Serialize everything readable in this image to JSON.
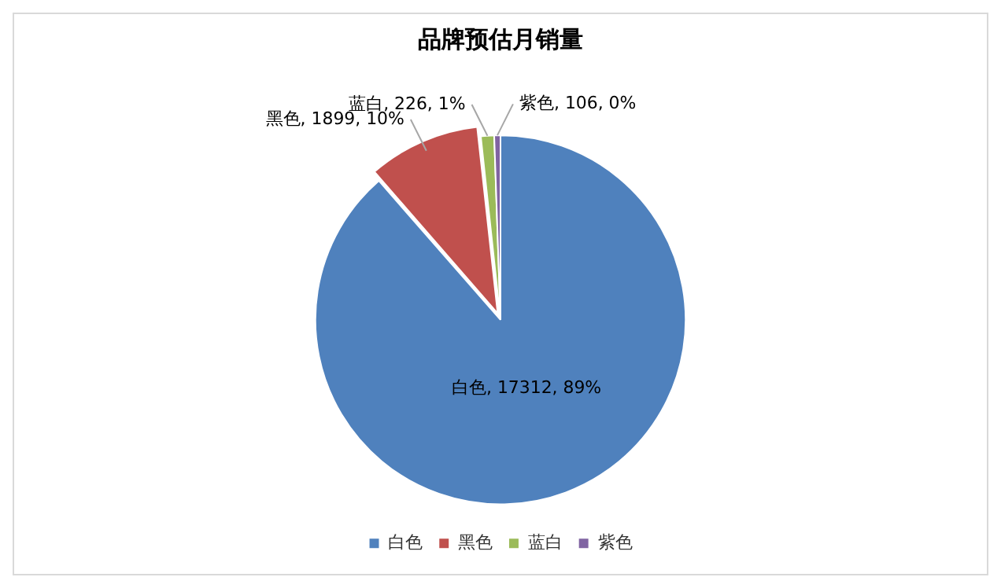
{
  "chart_data": {
    "type": "pie",
    "title": "品牌预估月销量",
    "categories": [
      "白色",
      "黑色",
      "蓝白",
      "紫色"
    ],
    "values": [
      17312,
      1899,
      226,
      106
    ],
    "colors": [
      "#4f81bd",
      "#c0504d",
      "#9bbb59",
      "#8064a2"
    ],
    "value_labels": [
      "白色, 17312, 89%",
      "黑色, 1899, 10%",
      "蓝白, 226, 1%",
      "紫色, 106, 0%"
    ],
    "legend": "bottom"
  }
}
